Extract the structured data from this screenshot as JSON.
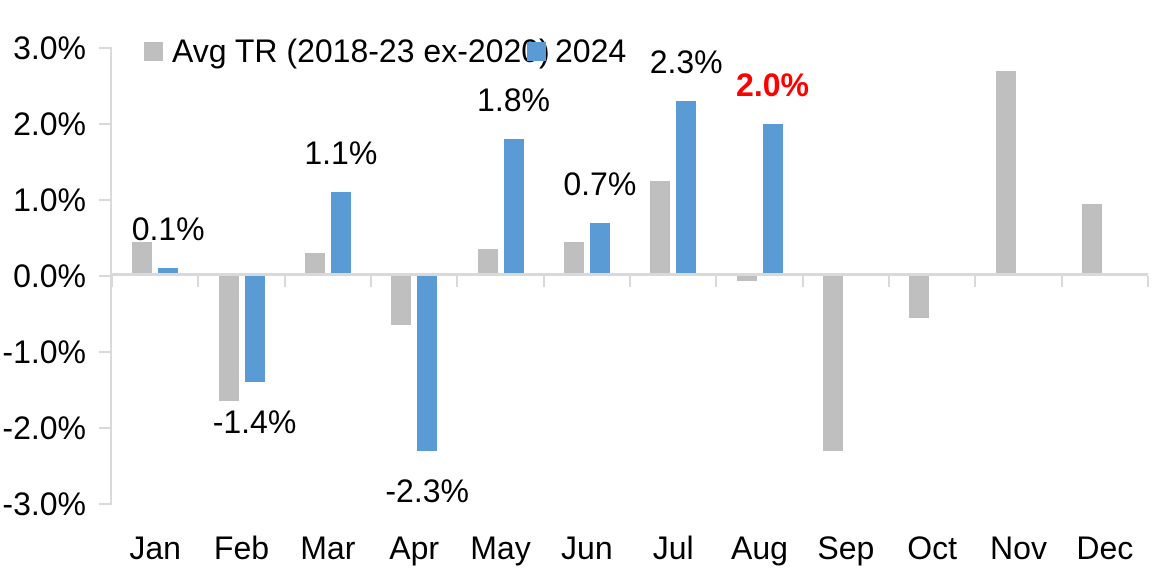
{
  "chart_data": {
    "type": "bar",
    "title": "",
    "categories": [
      "Jan",
      "Feb",
      "Mar",
      "Apr",
      "May",
      "Jun",
      "Jul",
      "Aug",
      "Sep",
      "Oct",
      "Nov",
      "Dec"
    ],
    "series": [
      {
        "name": "Avg TR (2018-23 ex-2020)",
        "color": "#BFBFBF",
        "values": [
          0.45,
          -1.65,
          0.3,
          -0.65,
          0.35,
          0.45,
          1.25,
          -0.07,
          -2.3,
          -0.55,
          2.7,
          0.95
        ]
      },
      {
        "name": "2024",
        "color": "#5B9BD5",
        "values": [
          0.1,
          -1.4,
          1.1,
          -2.3,
          1.8,
          0.7,
          2.3,
          2.0,
          null,
          null,
          null,
          null
        ]
      }
    ],
    "data_labels": {
      "series": "2024",
      "values": [
        {
          "text": "0.1%",
          "color": "#000000",
          "bold": false
        },
        {
          "text": "-1.4%",
          "color": "#000000",
          "bold": false
        },
        {
          "text": "1.1%",
          "color": "#000000",
          "bold": false
        },
        {
          "text": "-2.3%",
          "color": "#000000",
          "bold": false
        },
        {
          "text": "1.8%",
          "color": "#000000",
          "bold": false
        },
        {
          "text": "0.7%",
          "color": "#000000",
          "bold": false
        },
        {
          "text": "2.3%",
          "color": "#000000",
          "bold": false
        },
        {
          "text": "2.0%",
          "color": "#FF0000",
          "bold": true
        },
        null,
        null,
        null,
        null
      ]
    },
    "y_axis": {
      "min": -3.0,
      "max": 3.0,
      "step": 1.0,
      "tick_labels": [
        "3.0%",
        "2.0%",
        "1.0%",
        "0.0%",
        "-1.0%",
        "-2.0%",
        "-3.0%"
      ],
      "format": "percent"
    },
    "legend": {
      "position": "top"
    },
    "grid": false,
    "axis_color": "#D9D9D9",
    "text_color": "#000000"
  }
}
